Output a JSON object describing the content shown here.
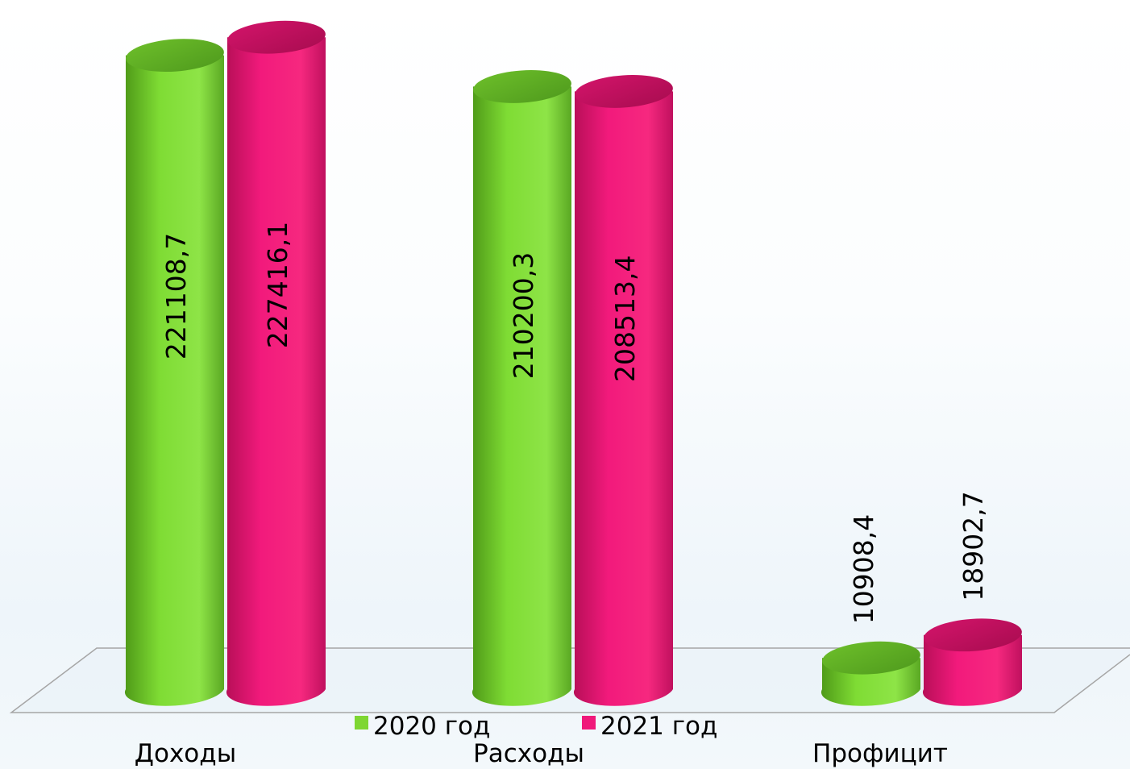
{
  "chart_data": {
    "type": "bar",
    "categories": [
      "Доходы",
      "Расходы",
      "Профицит"
    ],
    "series": [
      {
        "name": "2020 год",
        "values": [
          "221108,7",
          "210200,3",
          "10908,4"
        ],
        "color": "#7ed632"
      },
      {
        "name": "2021 год",
        "values": [
          "227416,1",
          "208513,4",
          "18902,7"
        ],
        "color": "#f0187a"
      }
    ],
    "ylim": [
      0,
      230000
    ],
    "grid": false,
    "legend_position": "bottom",
    "style": "3d-cylinder"
  }
}
